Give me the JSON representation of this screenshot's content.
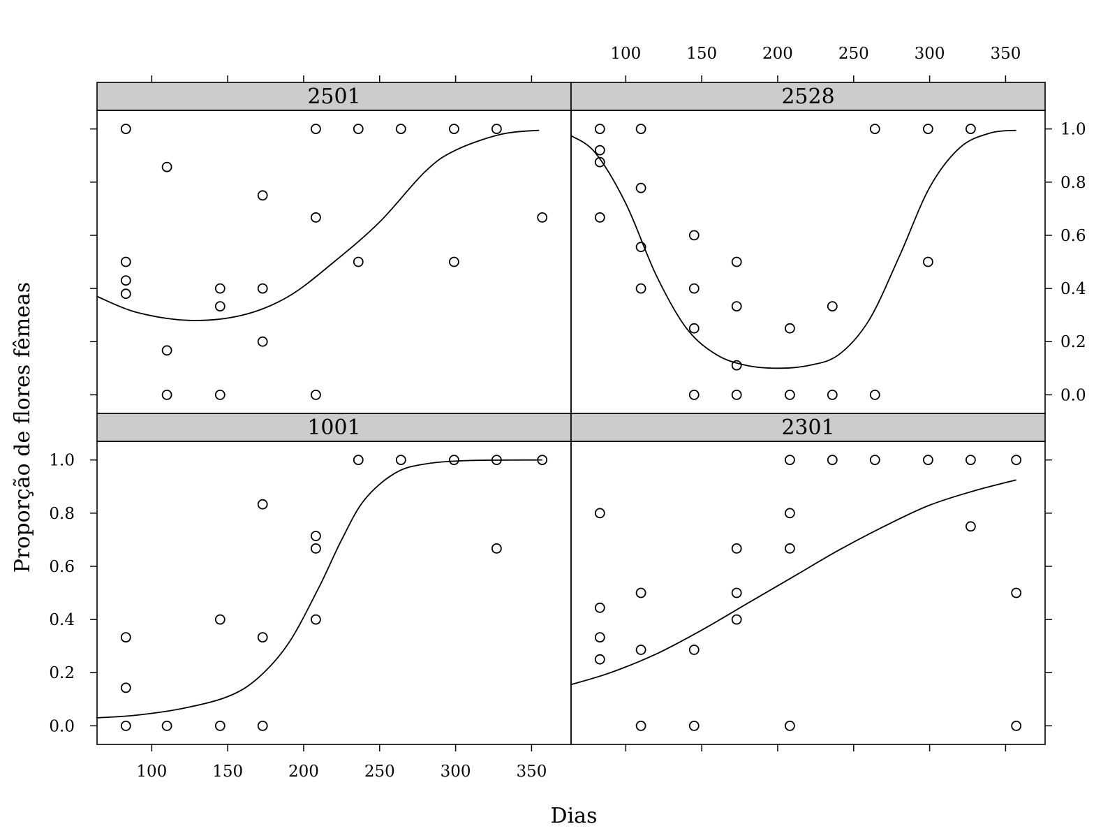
{
  "chart_data": {
    "type": "scatter",
    "layout": "2x2 lattice",
    "xlabel": "Dias",
    "ylabel": "Proporção de flores fêmeas",
    "xlim": [
      64,
      376
    ],
    "ylim": [
      -0.07,
      1.07
    ],
    "xticks": [
      100,
      150,
      200,
      250,
      300,
      350
    ],
    "xtick_labels": [
      "100",
      "150",
      "200",
      "250",
      "300",
      "350"
    ],
    "yticks": [
      0,
      0.2,
      0.4,
      0.6,
      0.8,
      1.0
    ],
    "ytick_labels": [
      "0.0",
      "0.2",
      "0.4",
      "0.6",
      "0.8",
      "1.0"
    ],
    "grid": false,
    "panels": [
      {
        "name": "2501",
        "position": "top-left",
        "points": [
          [
            83,
            1.0
          ],
          [
            83,
            0.5
          ],
          [
            83,
            0.43
          ],
          [
            83,
            0.38
          ],
          [
            110,
            0.857
          ],
          [
            110,
            0.167
          ],
          [
            110,
            0.0
          ],
          [
            145,
            0.4
          ],
          [
            145,
            0.333
          ],
          [
            145,
            0.0
          ],
          [
            173,
            0.75
          ],
          [
            173,
            0.4
          ],
          [
            173,
            0.2
          ],
          [
            208,
            1.0
          ],
          [
            208,
            0.667
          ],
          [
            208,
            0.0
          ],
          [
            236,
            1.0
          ],
          [
            236,
            0.5
          ],
          [
            264,
            1.0
          ],
          [
            299,
            1.0
          ],
          [
            299,
            0.5
          ],
          [
            327,
            1.0
          ],
          [
            357,
            0.667
          ]
        ],
        "curve": [
          [
            64,
            0.37
          ],
          [
            90,
            0.31
          ],
          [
            125,
            0.28
          ],
          [
            160,
            0.3
          ],
          [
            190,
            0.37
          ],
          [
            220,
            0.5
          ],
          [
            250,
            0.65
          ],
          [
            280,
            0.84
          ],
          [
            300,
            0.92
          ],
          [
            330,
            0.98
          ],
          [
            355,
            0.995
          ]
        ]
      },
      {
        "name": "2528",
        "position": "top-right",
        "points": [
          [
            83,
            1.0
          ],
          [
            83,
            0.92
          ],
          [
            83,
            0.875
          ],
          [
            83,
            0.667
          ],
          [
            110,
            1.0
          ],
          [
            110,
            0.778
          ],
          [
            110,
            0.556
          ],
          [
            110,
            0.4
          ],
          [
            145,
            0.6
          ],
          [
            145,
            0.4
          ],
          [
            145,
            0.25
          ],
          [
            145,
            0.0
          ],
          [
            173,
            0.5
          ],
          [
            173,
            0.333
          ],
          [
            173,
            0.111
          ],
          [
            173,
            0.0
          ],
          [
            208,
            0.25
          ],
          [
            208,
            0.0
          ],
          [
            236,
            0.333
          ],
          [
            236,
            0.0
          ],
          [
            264,
            1.0
          ],
          [
            264,
            0.0
          ],
          [
            299,
            1.0
          ],
          [
            299,
            0.5
          ],
          [
            327,
            1.0
          ]
        ],
        "curve": [
          [
            64,
            0.975
          ],
          [
            80,
            0.91
          ],
          [
            100,
            0.72
          ],
          [
            120,
            0.45
          ],
          [
            140,
            0.25
          ],
          [
            160,
            0.15
          ],
          [
            180,
            0.11
          ],
          [
            200,
            0.1
          ],
          [
            220,
            0.11
          ],
          [
            240,
            0.15
          ],
          [
            260,
            0.28
          ],
          [
            280,
            0.52
          ],
          [
            300,
            0.78
          ],
          [
            320,
            0.93
          ],
          [
            340,
            0.985
          ],
          [
            357,
            0.995
          ]
        ]
      },
      {
        "name": "1001",
        "position": "bottom-left",
        "points": [
          [
            83,
            0.333
          ],
          [
            83,
            0.143
          ],
          [
            83,
            0.0
          ],
          [
            110,
            0.0
          ],
          [
            145,
            0.4
          ],
          [
            145,
            0.0
          ],
          [
            173,
            0.833
          ],
          [
            173,
            0.333
          ],
          [
            173,
            0.0
          ],
          [
            208,
            0.714
          ],
          [
            208,
            0.667
          ],
          [
            208,
            0.4
          ],
          [
            236,
            1.0
          ],
          [
            264,
            1.0
          ],
          [
            299,
            1.0
          ],
          [
            327,
            1.0
          ],
          [
            327,
            0.667
          ],
          [
            357,
            1.0
          ]
        ],
        "curve": [
          [
            64,
            0.03
          ],
          [
            90,
            0.04
          ],
          [
            120,
            0.065
          ],
          [
            150,
            0.11
          ],
          [
            170,
            0.18
          ],
          [
            190,
            0.31
          ],
          [
            210,
            0.52
          ],
          [
            225,
            0.7
          ],
          [
            240,
            0.85
          ],
          [
            260,
            0.95
          ],
          [
            280,
            0.985
          ],
          [
            310,
            0.998
          ],
          [
            357,
            1.0
          ]
        ]
      },
      {
        "name": "2301",
        "position": "bottom-right",
        "points": [
          [
            83,
            0.8
          ],
          [
            83,
            0.444
          ],
          [
            83,
            0.333
          ],
          [
            83,
            0.25
          ],
          [
            110,
            0.5
          ],
          [
            110,
            0.286
          ],
          [
            110,
            0.0
          ],
          [
            145,
            0.286
          ],
          [
            145,
            0.0
          ],
          [
            173,
            0.667
          ],
          [
            173,
            0.5
          ],
          [
            173,
            0.4
          ],
          [
            208,
            1.0
          ],
          [
            208,
            0.8
          ],
          [
            208,
            0.667
          ],
          [
            208,
            0.0
          ],
          [
            236,
            1.0
          ],
          [
            264,
            1.0
          ],
          [
            299,
            1.0
          ],
          [
            327,
            1.0
          ],
          [
            327,
            0.75
          ],
          [
            357,
            1.0
          ],
          [
            357,
            0.5
          ],
          [
            357,
            0.0
          ]
        ],
        "curve": [
          [
            64,
            0.155
          ],
          [
            90,
            0.2
          ],
          [
            120,
            0.27
          ],
          [
            150,
            0.36
          ],
          [
            180,
            0.46
          ],
          [
            210,
            0.56
          ],
          [
            240,
            0.66
          ],
          [
            270,
            0.75
          ],
          [
            300,
            0.83
          ],
          [
            330,
            0.885
          ],
          [
            357,
            0.925
          ]
        ]
      }
    ]
  }
}
